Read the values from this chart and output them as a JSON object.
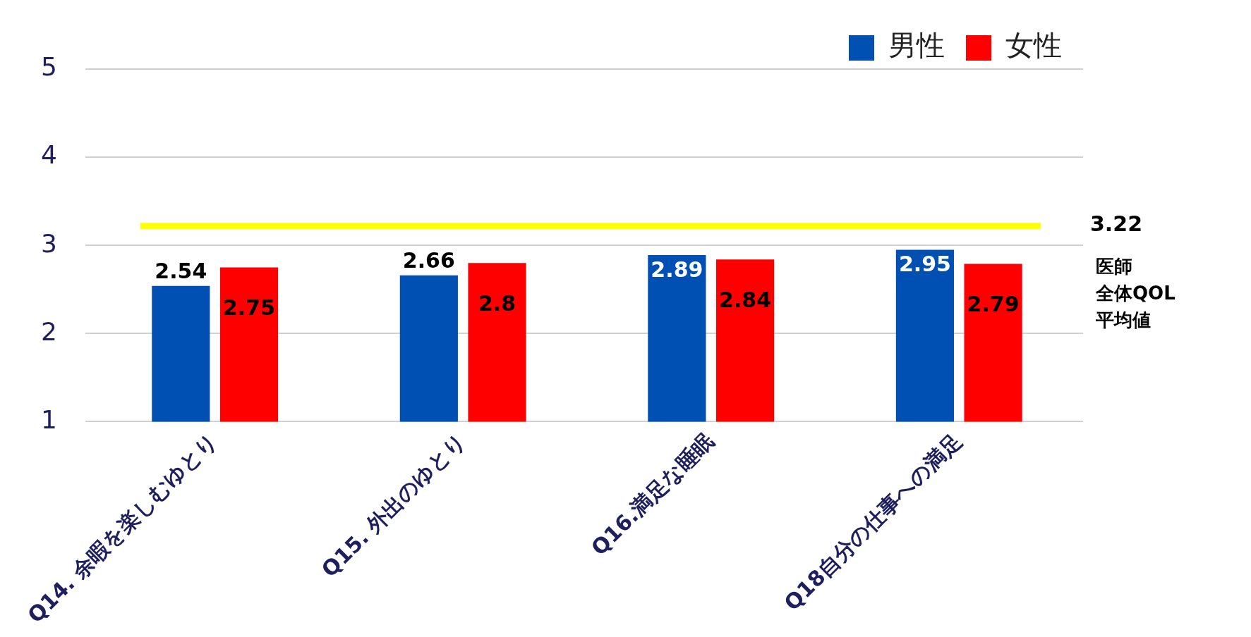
{
  "chart_data": {
    "type": "bar",
    "categories": [
      "Q14. 余暇を楽しむゆとり",
      "Q15. 外出のゆとり",
      "Q16.満足な睡眠",
      "Q18自分の仕事への満足"
    ],
    "series": [
      {
        "name": "男性",
        "color": "#0050b4",
        "values": [
          2.54,
          2.66,
          2.89,
          2.95
        ]
      },
      {
        "name": "女性",
        "color": "#ff0000",
        "values": [
          2.75,
          2.8,
          2.84,
          2.79
        ]
      }
    ],
    "ylim": [
      1,
      5
    ],
    "yticks": [
      1,
      2,
      3,
      4,
      5
    ],
    "grid": "y",
    "legend": "top right",
    "data_labels": true,
    "ref_lines": [
      {
        "axis": "y",
        "value": 3.22,
        "label": "3.22",
        "color": "#ffff00"
      }
    ],
    "annotations": [
      "医師",
      "全体QOL",
      "平均値"
    ]
  }
}
